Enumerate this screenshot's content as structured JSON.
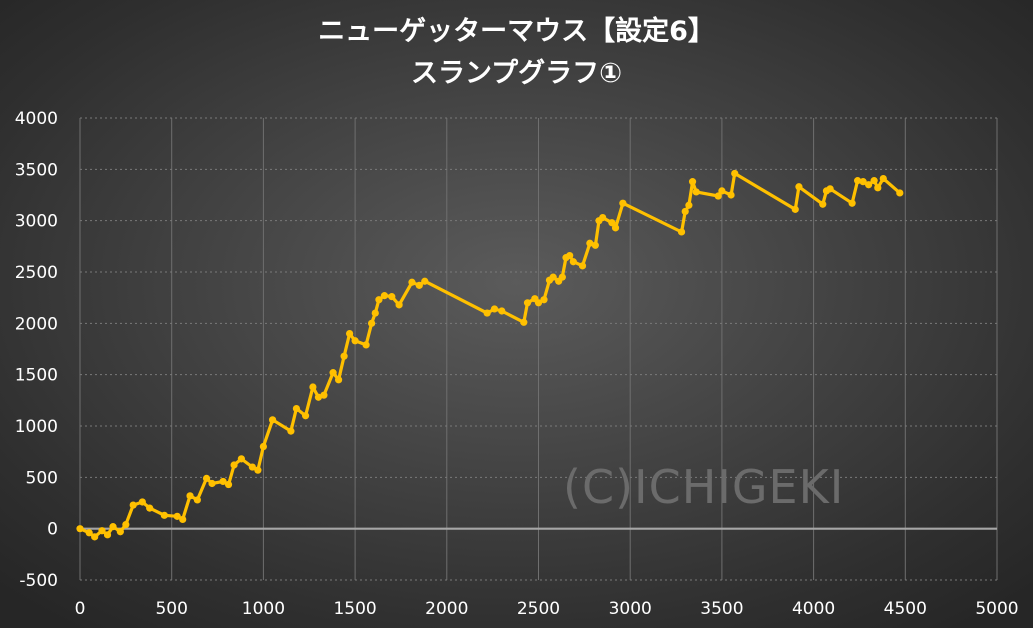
{
  "title_line1": "ニューゲッターマウス【設定6】",
  "title_line2": "スランプグラフ①",
  "watermark": "(C)ICHIGEKI",
  "colors": {
    "series": "#ffc000",
    "background": "#3c3c3c",
    "text": "#ffffff"
  },
  "chart_data": {
    "type": "line",
    "title": "ニューゲッターマウス【設定6】 スランプグラフ①",
    "xlabel": "",
    "ylabel": "",
    "xlim": [
      0,
      5000
    ],
    "ylim": [
      -500,
      4000
    ],
    "x_ticks": [
      0,
      500,
      1000,
      1500,
      2000,
      2500,
      3000,
      3500,
      4000,
      4500,
      5000
    ],
    "y_ticks": [
      -500,
      0,
      500,
      1000,
      1500,
      2000,
      2500,
      3000,
      3500,
      4000
    ],
    "grid": true,
    "legend": "none",
    "series": [
      {
        "name": "",
        "x": [
          0,
          50,
          80,
          120,
          150,
          180,
          220,
          250,
          290,
          340,
          380,
          460,
          530,
          560,
          600,
          640,
          690,
          720,
          780,
          810,
          840,
          880,
          940,
          970,
          1000,
          1050,
          1150,
          1180,
          1230,
          1270,
          1300,
          1330,
          1380,
          1410,
          1440,
          1470,
          1500,
          1560,
          1590,
          1610,
          1630,
          1660,
          1700,
          1740,
          1810,
          1850,
          1880,
          2220,
          2260,
          2300,
          2420,
          2440,
          2480,
          2500,
          2530,
          2560,
          2580,
          2610,
          2630,
          2650,
          2670,
          2690,
          2740,
          2780,
          2810,
          2830,
          2850,
          2900,
          2920,
          2960,
          3280,
          3300,
          3320,
          3340,
          3360,
          3480,
          3500,
          3550,
          3570,
          3900,
          3920,
          4050,
          4070,
          4090,
          4210,
          4240,
          4270,
          4300,
          4330,
          4350,
          4380,
          4470
        ],
        "y": [
          0,
          -40,
          -80,
          -20,
          -60,
          20,
          -30,
          40,
          230,
          260,
          200,
          130,
          120,
          90,
          320,
          280,
          490,
          440,
          460,
          430,
          620,
          680,
          600,
          570,
          800,
          1060,
          950,
          1170,
          1100,
          1380,
          1280,
          1300,
          1520,
          1450,
          1680,
          1900,
          1830,
          1790,
          2000,
          2100,
          2230,
          2270,
          2260,
          2180,
          2400,
          2370,
          2410,
          2100,
          2140,
          2120,
          2010,
          2200,
          2240,
          2200,
          2230,
          2420,
          2450,
          2410,
          2450,
          2640,
          2660,
          2600,
          2560,
          2780,
          2760,
          3000,
          3030,
          2980,
          2930,
          3170,
          2890,
          3090,
          3150,
          3380,
          3280,
          3240,
          3290,
          3250,
          3460,
          3110,
          3330,
          3160,
          3290,
          3310,
          3170,
          3390,
          3380,
          3350,
          3390,
          3320,
          3410,
          3270
        ]
      }
    ]
  }
}
